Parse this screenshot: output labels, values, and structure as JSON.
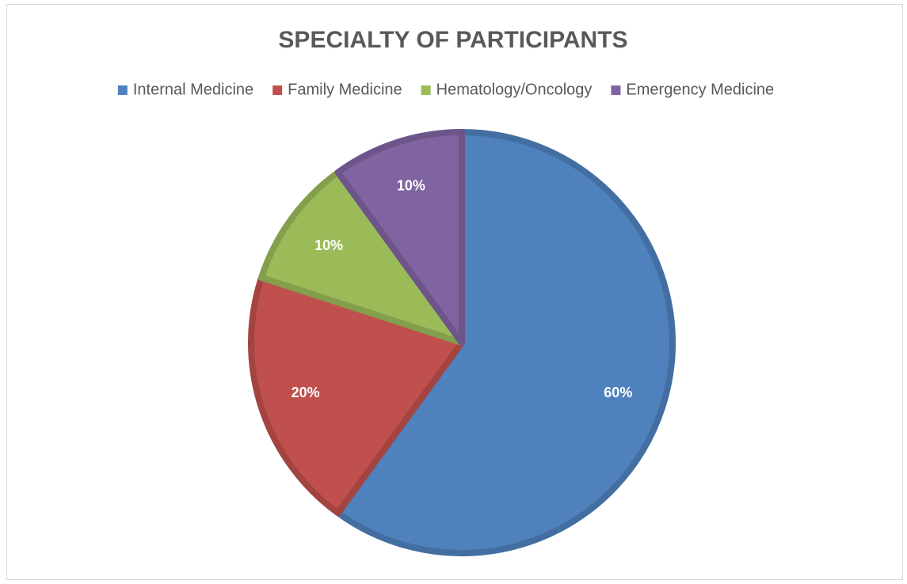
{
  "chart_data": {
    "type": "pie",
    "title": "SPECIALTY OF PARTICIPANTS",
    "categories": [
      "Internal Medicine",
      "Family Medicine",
      "Hematology/Oncology",
      "Emergency Medicine"
    ],
    "values": [
      60,
      20,
      10,
      10
    ],
    "value_labels": [
      "60%",
      "20%",
      "10%",
      "10%"
    ],
    "colors": [
      "#4f81bd",
      "#c0504d",
      "#9bbb59",
      "#8064a2"
    ],
    "legend": "top"
  }
}
